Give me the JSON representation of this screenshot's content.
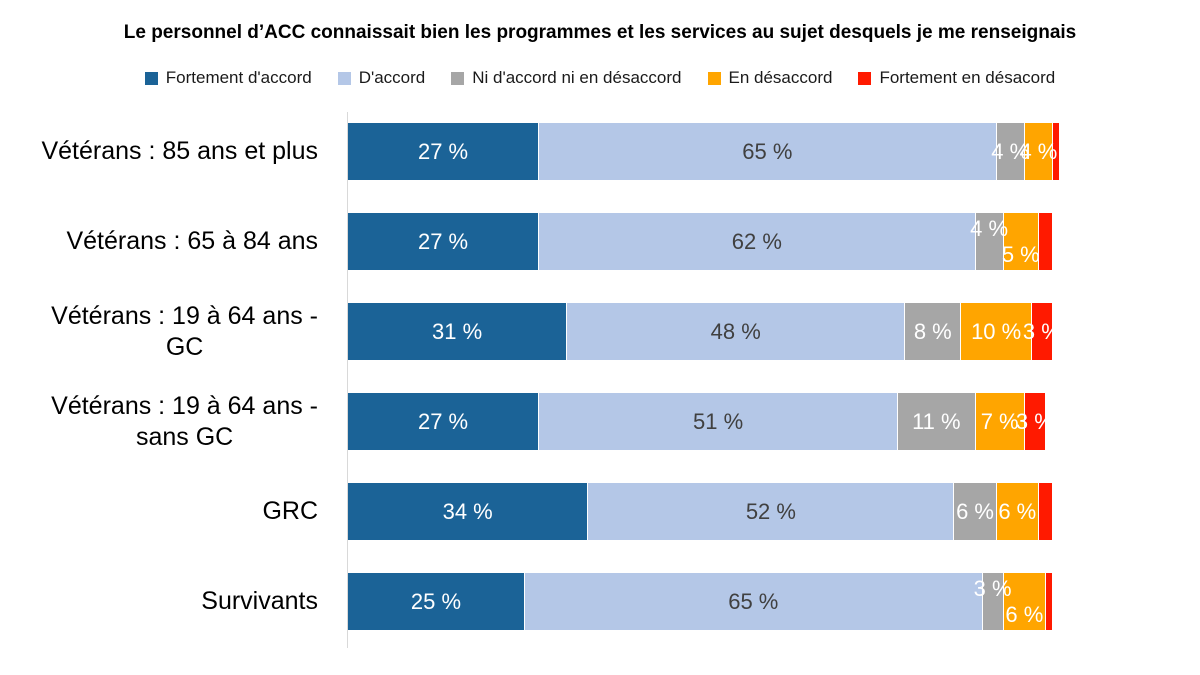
{
  "chart_data": {
    "type": "bar",
    "orientation": "horizontal",
    "stacked": true,
    "grid": false,
    "legend_position": "top",
    "xlim": [
      0,
      100
    ],
    "title": "Le personnel d’ACC connaissait bien les programmes et les services au sujet desquels je me renseignais",
    "categories": [
      "Vétérans : 85 ans et plus",
      "Vétérans : 65 à 84 ans",
      "Vétérans : 19 à 64 ans -\nGC",
      "Vétérans : 19 à 64 ans -\nsans GC",
      "GRC",
      "Survivants"
    ],
    "series": [
      {
        "name": "Fortement d'accord",
        "color": "#1b6397",
        "label_color": "#ffffff",
        "values": [
          27,
          27,
          31,
          27,
          34,
          25
        ]
      },
      {
        "name": "D'accord",
        "color": "#b4c7e7",
        "label_color": "#404040",
        "values": [
          65,
          62,
          48,
          51,
          52,
          65
        ]
      },
      {
        "name": "Ni d'accord ni en désaccord",
        "color": "#a6a6a6",
        "label_color": "#ffffff",
        "values": [
          4,
          4,
          8,
          11,
          6,
          3
        ]
      },
      {
        "name": "En désaccord",
        "color": "#ffa500",
        "label_color": "#ffffff",
        "values": [
          4,
          5,
          10,
          7,
          6,
          6
        ]
      },
      {
        "name": "Fortement en désacord",
        "color": "#ff1a00",
        "label_color": "#ffffff",
        "values": [
          1,
          2,
          3,
          3,
          2,
          1
        ]
      }
    ],
    "bar_labels": [
      [
        "27 %",
        "65 %",
        "4 %",
        "4 %",
        ""
      ],
      [
        "27 %",
        "62 %",
        "4 %",
        "5 %",
        ""
      ],
      [
        "31 %",
        "48 %",
        "8 %",
        "10 %",
        "3 %"
      ],
      [
        "27 %",
        "51 %",
        "11 %",
        "7 %",
        "3 %"
      ],
      [
        "34 %",
        "52 %",
        "6 %",
        "6 %",
        ""
      ],
      [
        "25 %",
        "65 %",
        "3 %",
        "6 %",
        ""
      ]
    ],
    "label_dy": [
      [
        0,
        0,
        0,
        0,
        0
      ],
      [
        0,
        0,
        -13,
        13,
        0
      ],
      [
        0,
        0,
        0,
        0,
        0
      ],
      [
        0,
        0,
        0,
        0,
        0
      ],
      [
        0,
        0,
        0,
        0,
        0
      ],
      [
        0,
        0,
        -13,
        13,
        0
      ]
    ],
    "axis_line_color": "#d9d9d9",
    "background_color": "#ffffff"
  }
}
